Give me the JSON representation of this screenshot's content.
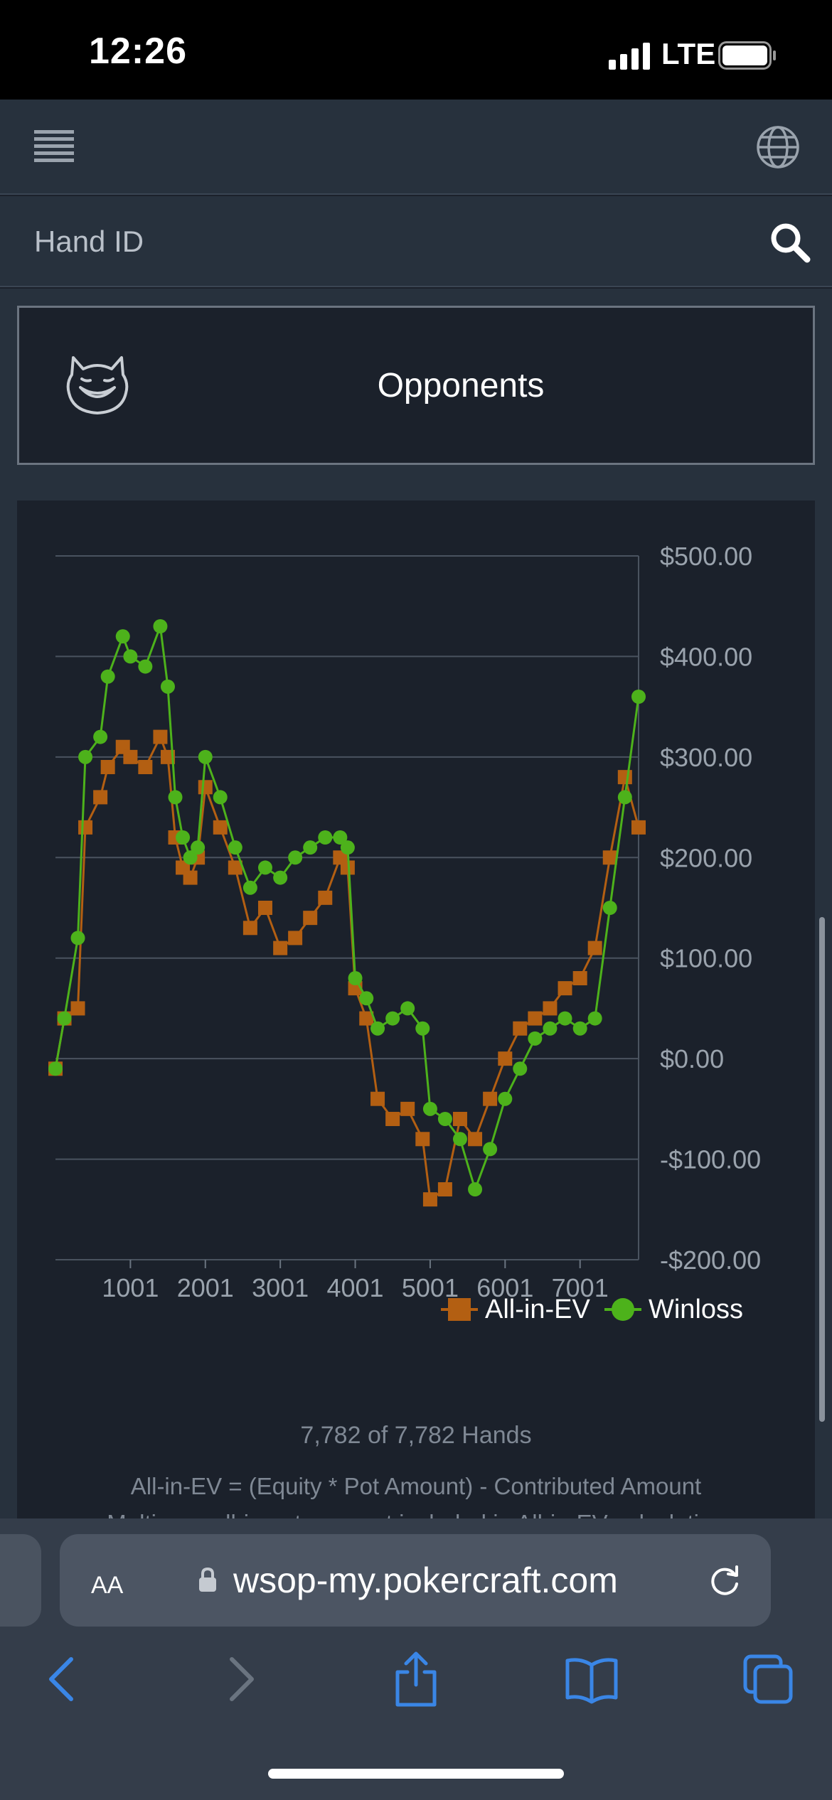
{
  "status_bar": {
    "time": "12:26",
    "network": "LTE"
  },
  "search": {
    "placeholder": "Hand ID"
  },
  "opponents": {
    "label": "Opponents"
  },
  "chart_data": {
    "type": "line",
    "x_tick_labels": [
      "1001",
      "2001",
      "3001",
      "4001",
      "5001",
      "6001",
      "7001"
    ],
    "x_ticks": [
      1001,
      2001,
      3001,
      4001,
      5001,
      6001,
      7001
    ],
    "xlim": [
      1,
      7782
    ],
    "y_ticks": [
      -200,
      -100,
      0,
      100,
      200,
      300,
      400,
      500
    ],
    "y_tick_labels": [
      "-$200.00",
      "-$100.00",
      "$0.00",
      "$100.00",
      "$200.00",
      "$300.00",
      "$400.00",
      "$500.00"
    ],
    "ylim": [
      -200,
      500
    ],
    "grid": true,
    "legend_position": "bottom-right",
    "colors": {
      "All-in-EV": "#b35f12",
      "Winloss": "#4db21b"
    },
    "series": [
      {
        "name": "All-in-EV",
        "marker": "square",
        "x": [
          1,
          120,
          300,
          400,
          600,
          700,
          900,
          1001,
          1200,
          1400,
          1500,
          1600,
          1700,
          1800,
          1900,
          2001,
          2200,
          2400,
          2600,
          2800,
          3001,
          3200,
          3400,
          3600,
          3800,
          3900,
          4001,
          4150,
          4300,
          4500,
          4700,
          4900,
          5001,
          5200,
          5400,
          5600,
          5800,
          6001,
          6200,
          6400,
          6600,
          6800,
          7001,
          7200,
          7400,
          7600,
          7782
        ],
        "values": [
          -10,
          40,
          50,
          230,
          260,
          290,
          310,
          300,
          290,
          320,
          300,
          220,
          190,
          180,
          200,
          270,
          230,
          190,
          130,
          150,
          110,
          120,
          140,
          160,
          200,
          190,
          70,
          40,
          -40,
          -60,
          -50,
          -80,
          -140,
          -130,
          -60,
          -80,
          -40,
          0,
          30,
          40,
          50,
          70,
          80,
          110,
          200,
          280,
          230
        ]
      },
      {
        "name": "Winloss",
        "marker": "circle",
        "x": [
          1,
          120,
          300,
          400,
          600,
          700,
          900,
          1001,
          1200,
          1400,
          1500,
          1600,
          1700,
          1800,
          1900,
          2001,
          2200,
          2400,
          2600,
          2800,
          3001,
          3200,
          3400,
          3600,
          3800,
          3900,
          4001,
          4150,
          4300,
          4500,
          4700,
          4900,
          5001,
          5200,
          5400,
          5600,
          5800,
          6001,
          6200,
          6400,
          6600,
          6800,
          7001,
          7200,
          7400,
          7600,
          7782
        ],
        "values": [
          -10,
          40,
          120,
          300,
          320,
          380,
          420,
          400,
          390,
          430,
          370,
          260,
          220,
          200,
          210,
          300,
          260,
          210,
          170,
          190,
          180,
          200,
          210,
          220,
          220,
          210,
          80,
          60,
          30,
          40,
          50,
          30,
          -50,
          -60,
          -80,
          -130,
          -90,
          -40,
          -10,
          20,
          30,
          40,
          30,
          40,
          150,
          260,
          360
        ]
      }
    ]
  },
  "legend": {
    "all_in_ev": "All-in-EV",
    "winloss": "Winloss"
  },
  "footer": {
    "hands": "7,782 of 7,782 Hands",
    "formula": "All-in-EV = (Equity * Pot Amount) - Contributed Amount",
    "formula2": "Multi-way all-in pots are not included in All-in-EV calculation"
  },
  "browser": {
    "text_size": "AA",
    "url": "wsop-my.pokercraft.com"
  }
}
